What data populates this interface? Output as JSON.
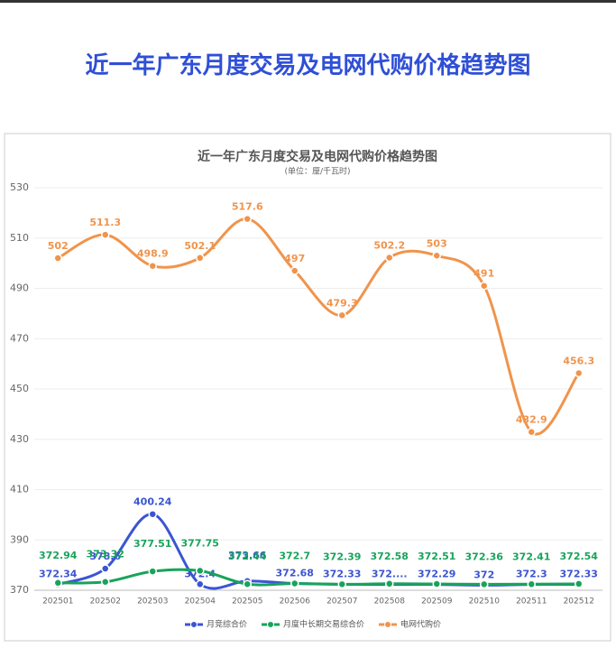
{
  "header": {
    "title": "近一年广东月度交易及电网代购价格趋势图"
  },
  "chart_data": {
    "type": "line",
    "title": "近一年广东月度交易及电网代购价格趋势图",
    "subtitle": "(单位：厘/千瓦时)",
    "categories": [
      "202501",
      "202502",
      "202503",
      "202504",
      "202505",
      "202506",
      "202507",
      "202508",
      "202509",
      "202510",
      "202511",
      "202512"
    ],
    "series": [
      {
        "name": "月竞综合价",
        "color": "#3b55d3",
        "values": [
          372.34,
          378.6,
          400.24,
          372.4,
          373.66,
          372.68,
          372.33,
          372.3,
          372.29,
          372,
          372.3,
          372.33
        ],
        "value_labels": [
          "372.34",
          "378.6",
          "400.24",
          "372.4",
          "373.66",
          "372.68",
          "372.33",
          "372....",
          "372.29",
          "372",
          "372.3",
          "372.33"
        ]
      },
      {
        "name": "月度中长期交易综合价",
        "color": "#19a35b",
        "values": [
          372.94,
          373.32,
          377.51,
          377.75,
          372.44,
          372.7,
          372.39,
          372.58,
          372.51,
          372.36,
          372.41,
          372.54
        ]
      },
      {
        "name": "电网代购价",
        "color": "#f0944c",
        "values": [
          502,
          511.3,
          498.9,
          502.1,
          517.6,
          497,
          479.3,
          502.2,
          503,
          491,
          432.9,
          456.3
        ]
      }
    ],
    "ylim": [
      370,
      530
    ],
    "yticks": [
      370,
      390,
      410,
      430,
      450,
      470,
      490,
      510,
      530
    ],
    "grid": true
  }
}
